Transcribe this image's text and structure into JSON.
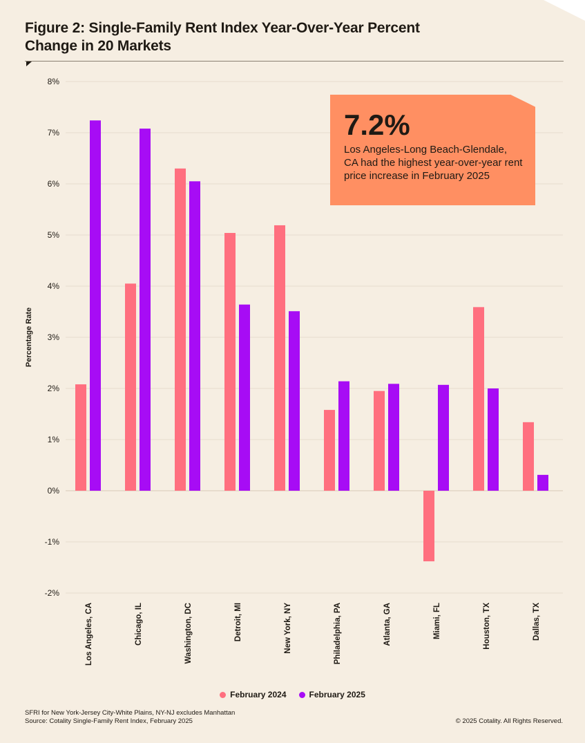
{
  "title": "Figure 2: Single-Family Rent Index Year-Over-Year Percent Change in 20 Markets",
  "callout": {
    "value": "7.2%",
    "text": "Los Angeles-Long Beach-Glendale, CA had the highest year-over-year rent price increase in February 2025"
  },
  "footnote": [
    "SFRI for New York-Jersey City-White Plains, NY-NJ excludes Manhattan",
    "Source: Cotality Single-Family Rent Index, February 2025"
  ],
  "copyright": "© 2025 Cotality. All Rights Reserved.",
  "colors": {
    "background": "#f6eee2",
    "feb2024": "#ff6f7f",
    "feb2025": "#a70cf5",
    "callout": "#ff8f62"
  },
  "chart_data": {
    "type": "bar",
    "title": "Figure 2: Single-Family Rent Index Year-Over-Year Percent Change in 20 Markets",
    "xlabel": "",
    "ylabel": "Percentage Rate",
    "ylim": [
      -2,
      8
    ],
    "yticks": [
      "8%",
      "7%",
      "6%",
      "5%",
      "4%",
      "3%",
      "2%",
      "1%",
      "0%",
      "-1%",
      "-2%"
    ],
    "ytick_values": [
      8,
      7,
      6,
      5,
      4,
      3,
      2,
      1,
      0,
      -1,
      -2
    ],
    "grid": true,
    "legend_position": "bottom",
    "categories": [
      "Los Angeles, CA",
      "Chicago, IL",
      "Washington, DC",
      "Detroit, MI",
      "New York, NY",
      "Philadelphia, PA",
      "Atlanta, GA",
      "Miami, FL",
      "Houston, TX",
      "Dallas, TX"
    ],
    "series": [
      {
        "name": "February 2024",
        "color": "#ff6f7f",
        "values": [
          2.08,
          4.05,
          6.3,
          5.04,
          5.19,
          1.58,
          1.95,
          -1.38,
          3.59,
          1.34
        ]
      },
      {
        "name": "February 2025",
        "color": "#a70cf5",
        "values": [
          7.24,
          7.08,
          6.05,
          3.64,
          3.51,
          2.14,
          2.09,
          2.07,
          2.0,
          0.31
        ]
      }
    ]
  }
}
